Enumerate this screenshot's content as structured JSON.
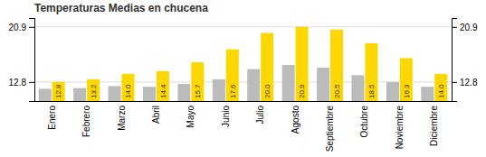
{
  "chart_data": {
    "type": "bar",
    "title": "Temperaturas Medias en chucena",
    "categories": [
      "Enero",
      "Febrero",
      "Marzo",
      "Abril",
      "Mayo",
      "Junio",
      "Julio",
      "Agosto",
      "Septiembre",
      "Octubre",
      "Noviembre",
      "Diciembre"
    ],
    "series": [
      {
        "color": "#BBBBBB",
        "values": [
          11.8,
          11.9,
          12.2,
          12.1,
          12.5,
          13.2,
          14.7,
          15.3,
          14.9,
          13.8,
          12.8,
          12.1
        ]
      },
      {
        "color": "#FFD700",
        "values": [
          12.8,
          13.2,
          14.0,
          14.4,
          15.7,
          17.6,
          20.0,
          20.9,
          20.5,
          18.5,
          16.3,
          14.0
        ],
        "value_labels": [
          "12.8",
          "13.2",
          "14.0",
          "14.4",
          "15.7",
          "17.6",
          "20.0",
          "20.9",
          "20.5",
          "18.5",
          "16.3",
          "14.0"
        ]
      }
    ],
    "ylim": [
      10.0,
      22.2
    ],
    "yticks": [
      12.8,
      20.9
    ],
    "y2lim": [
      10.0,
      22.2
    ],
    "y2ticks": [
      12.8,
      20.9
    ],
    "grid": true,
    "data_labels": true
  }
}
